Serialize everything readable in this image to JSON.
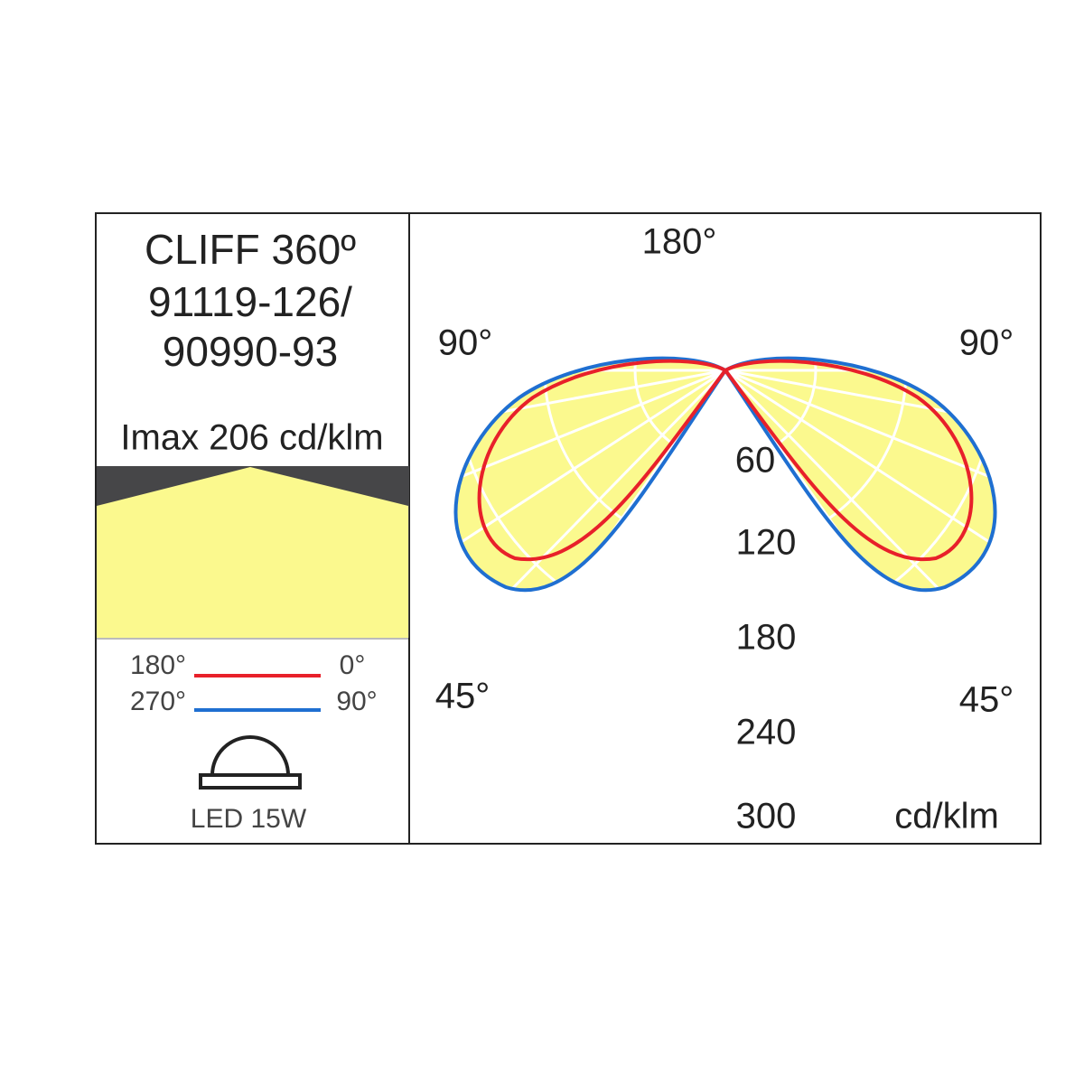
{
  "product": {
    "name": "CLIFF 360º",
    "codes": [
      "91119-126/",
      "90990-93"
    ],
    "imax": "Imax 206 cd/klm",
    "lamp": "LED 15W"
  },
  "legend": [
    {
      "from": "180°",
      "to": "0°",
      "color": "#e8202a"
    },
    {
      "from": "270°",
      "to": "90°",
      "color": "#1f6fd1"
    }
  ],
  "diagram": {
    "angles": {
      "top": "180°",
      "upper_left": "90°",
      "upper_right": "90°",
      "lower_left": "45°",
      "lower_right": "45°"
    },
    "scale": [
      "60",
      "120",
      "180",
      "240",
      "300"
    ],
    "unit": "cd/klm"
  }
}
